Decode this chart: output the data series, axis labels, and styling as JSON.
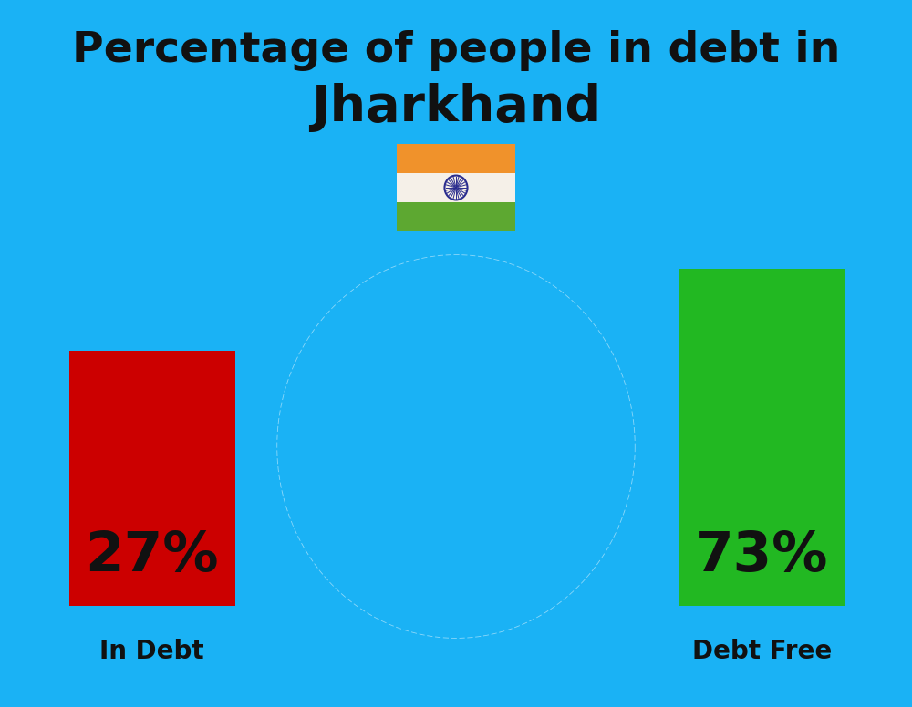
{
  "title_line1": "Percentage of people in debt in",
  "title_line2": "Jharkhand",
  "title_color": "#111111",
  "title_fontsize": 34,
  "title2_fontsize": 40,
  "background_color": "#1ab2f5",
  "bar1_label": "27%",
  "bar1_color": "#cc0000",
  "bar1_text": "In Debt",
  "bar2_label": "73%",
  "bar2_color": "#22b822",
  "bar2_text": "Debt Free",
  "bar_label_color": "#111111",
  "bar_label_fontsize": 44,
  "bar_sublabel_fontsize": 20,
  "bar_sublabel_color": "#111111",
  "flag_saffron": "#f0922b",
  "flag_white": "#f5f0e8",
  "flag_green": "#5da831",
  "flag_navy": "#2b2d8e"
}
